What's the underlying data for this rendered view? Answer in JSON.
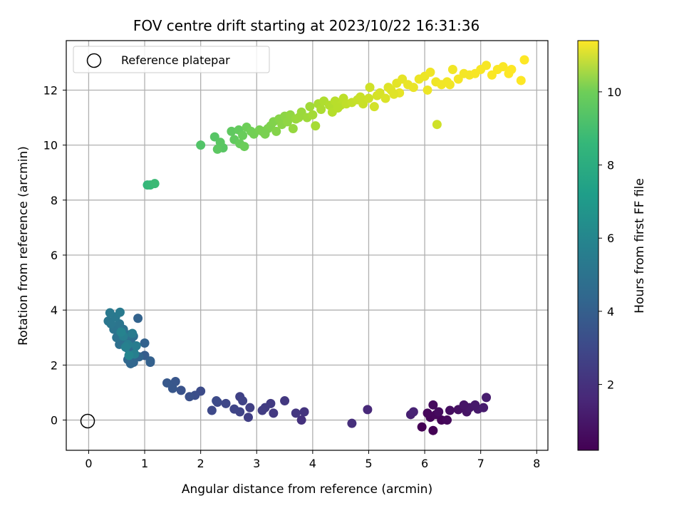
{
  "chart_data": {
    "type": "scatter",
    "title": "FOV centre drift starting at 2023/10/22 16:31:36",
    "xlabel": "Angular distance from reference (arcmin)",
    "ylabel": "Rotation from reference (arcmin)",
    "xlim": [
      -0.4,
      8.2
    ],
    "ylim": [
      -1.1,
      13.8
    ],
    "xticks": [
      0,
      1,
      2,
      3,
      4,
      5,
      6,
      7,
      8
    ],
    "yticks": [
      0,
      2,
      4,
      6,
      8,
      10,
      12
    ],
    "grid": true,
    "legend": {
      "position": "top-left",
      "entries": [
        "Reference platepar"
      ]
    },
    "reference_point": {
      "x": 0,
      "y": 0,
      "label": "Reference platepar"
    },
    "colorbar": {
      "label": "Hours from first FF file",
      "colormap": "viridis",
      "range": [
        0.2,
        11.4
      ],
      "ticks": [
        2,
        4,
        6,
        8,
        10
      ]
    },
    "points": [
      [
        5.95,
        -0.25,
        0.2
      ],
      [
        6.15,
        -0.38,
        0.25
      ],
      [
        6.3,
        0.0,
        0.3
      ],
      [
        6.1,
        0.1,
        0.35
      ],
      [
        6.2,
        0.2,
        0.4
      ],
      [
        6.4,
        0.0,
        0.45
      ],
      [
        6.15,
        0.55,
        0.5
      ],
      [
        6.25,
        0.3,
        0.55
      ],
      [
        6.45,
        0.35,
        0.6
      ],
      [
        6.6,
        0.38,
        0.7
      ],
      [
        6.75,
        0.3,
        0.8
      ],
      [
        6.8,
        0.45,
        0.9
      ],
      [
        6.95,
        0.4,
        1.0
      ],
      [
        7.05,
        0.45,
        1.05
      ],
      [
        7.1,
        0.82,
        1.1
      ],
      [
        6.9,
        0.55,
        0.95
      ],
      [
        6.7,
        0.55,
        0.85
      ],
      [
        6.05,
        0.25,
        0.4
      ],
      [
        5.75,
        0.2,
        1.2
      ],
      [
        5.8,
        0.3,
        1.3
      ],
      [
        4.98,
        0.38,
        1.5
      ],
      [
        4.7,
        -0.12,
        1.7
      ],
      [
        3.8,
        0.0,
        1.8
      ],
      [
        3.85,
        0.3,
        1.9
      ],
      [
        3.7,
        0.25,
        2.0
      ],
      [
        3.5,
        0.7,
        2.05
      ],
      [
        3.3,
        0.25,
        2.1
      ],
      [
        3.25,
        0.6,
        2.15
      ],
      [
        3.15,
        0.45,
        2.2
      ],
      [
        3.1,
        0.35,
        2.25
      ],
      [
        2.85,
        0.1,
        2.3
      ],
      [
        2.88,
        0.45,
        2.35
      ],
      [
        2.7,
        0.85,
        2.4
      ],
      [
        2.75,
        0.7,
        2.45
      ],
      [
        2.7,
        0.3,
        2.5
      ],
      [
        2.6,
        0.4,
        2.55
      ],
      [
        2.45,
        0.6,
        2.6
      ],
      [
        2.3,
        0.65,
        2.65
      ],
      [
        2.2,
        0.35,
        2.7
      ],
      [
        2.28,
        0.7,
        2.75
      ],
      [
        2.0,
        1.05,
        2.8
      ],
      [
        1.9,
        0.9,
        2.9
      ],
      [
        1.8,
        0.85,
        3.0
      ],
      [
        1.65,
        1.08,
        3.1
      ],
      [
        1.55,
        1.4,
        3.2
      ],
      [
        1.5,
        1.15,
        3.25
      ],
      [
        1.4,
        1.35,
        3.3
      ],
      [
        1.0,
        2.35,
        3.5
      ],
      [
        1.1,
        2.1,
        3.6
      ],
      [
        1.1,
        2.15,
        3.65
      ],
      [
        1.0,
        2.8,
        3.7
      ],
      [
        0.88,
        3.7,
        3.75
      ],
      [
        0.9,
        2.3,
        3.8
      ],
      [
        0.8,
        2.1,
        3.85
      ],
      [
        0.75,
        2.05,
        3.9
      ],
      [
        0.7,
        2.2,
        3.95
      ],
      [
        0.8,
        2.5,
        4.0
      ],
      [
        0.7,
        2.6,
        4.05
      ],
      [
        0.65,
        2.9,
        4.1
      ],
      [
        0.75,
        2.9,
        4.15
      ],
      [
        0.8,
        3.05,
        4.2
      ],
      [
        0.6,
        3.0,
        4.25
      ],
      [
        0.55,
        2.75,
        4.3
      ],
      [
        0.72,
        3.1,
        4.35
      ],
      [
        0.62,
        3.3,
        4.4
      ],
      [
        0.5,
        3.0,
        4.45
      ],
      [
        0.45,
        3.3,
        4.5
      ],
      [
        0.55,
        3.5,
        4.55
      ],
      [
        0.35,
        3.6,
        4.6
      ],
      [
        0.4,
        3.5,
        4.65
      ],
      [
        0.48,
        3.75,
        4.7
      ],
      [
        0.38,
        3.9,
        4.75
      ],
      [
        0.56,
        3.92,
        4.8
      ],
      [
        0.78,
        3.15,
        4.85
      ],
      [
        0.85,
        2.7,
        4.9
      ],
      [
        0.7,
        2.75,
        4.95
      ],
      [
        0.62,
        3.05,
        5.0
      ],
      [
        0.82,
        2.4,
        5.05
      ],
      [
        0.66,
        2.65,
        5.1
      ],
      [
        0.58,
        3.2,
        5.2
      ],
      [
        0.72,
        2.35,
        5.3
      ],
      [
        1.05,
        8.55,
        7.6
      ],
      [
        1.1,
        8.55,
        7.7
      ],
      [
        1.18,
        8.6,
        7.8
      ],
      [
        2.0,
        10.0,
        8.3
      ],
      [
        2.25,
        10.3,
        8.4
      ],
      [
        2.4,
        9.9,
        8.45
      ],
      [
        2.35,
        10.1,
        8.5
      ],
      [
        2.3,
        9.85,
        8.55
      ],
      [
        2.55,
        10.5,
        8.6
      ],
      [
        2.6,
        10.2,
        8.65
      ],
      [
        2.68,
        10.55,
        8.7
      ],
      [
        2.7,
        10.05,
        8.75
      ],
      [
        2.75,
        10.35,
        8.8
      ],
      [
        2.78,
        9.95,
        8.85
      ],
      [
        2.82,
        10.65,
        8.9
      ],
      [
        2.9,
        10.5,
        8.95
      ],
      [
        2.95,
        10.4,
        9.0
      ],
      [
        3.05,
        10.55,
        9.05
      ],
      [
        3.1,
        10.5,
        9.1
      ],
      [
        3.2,
        10.6,
        9.15
      ],
      [
        3.25,
        10.7,
        9.2
      ],
      [
        3.3,
        10.85,
        9.25
      ],
      [
        3.35,
        10.5,
        9.3
      ],
      [
        3.4,
        10.95,
        9.35
      ],
      [
        3.45,
        10.75,
        9.4
      ],
      [
        3.5,
        11.05,
        9.45
      ],
      [
        3.55,
        10.85,
        9.5
      ],
      [
        3.6,
        11.1,
        9.55
      ],
      [
        3.65,
        10.6,
        9.6
      ],
      [
        3.7,
        10.95,
        9.65
      ],
      [
        3.8,
        11.2,
        9.7
      ],
      [
        3.9,
        11.0,
        9.75
      ],
      [
        3.95,
        11.4,
        9.8
      ],
      [
        4.0,
        11.1,
        9.85
      ],
      [
        4.05,
        10.7,
        9.9
      ],
      [
        4.1,
        11.5,
        9.95
      ],
      [
        4.15,
        11.3,
        10.0
      ],
      [
        4.2,
        11.6,
        10.05
      ],
      [
        4.3,
        11.45,
        10.1
      ],
      [
        4.35,
        11.2,
        10.15
      ],
      [
        4.4,
        11.6,
        10.2
      ],
      [
        4.5,
        11.45,
        10.25
      ],
      [
        4.55,
        11.7,
        10.3
      ],
      [
        4.6,
        11.5,
        10.35
      ],
      [
        4.7,
        11.55,
        10.4
      ],
      [
        4.8,
        11.65,
        10.45
      ],
      [
        4.9,
        11.5,
        10.5
      ],
      [
        5.0,
        11.7,
        10.55
      ],
      [
        5.02,
        12.1,
        10.6
      ],
      [
        5.1,
        11.4,
        10.65
      ],
      [
        5.15,
        11.8,
        10.7
      ],
      [
        5.2,
        11.9,
        10.75
      ],
      [
        5.3,
        11.7,
        10.8
      ],
      [
        5.35,
        12.1,
        10.85
      ],
      [
        5.4,
        12.0,
        10.9
      ],
      [
        5.5,
        12.25,
        10.95
      ],
      [
        5.55,
        11.9,
        11.0
      ],
      [
        5.6,
        12.4,
        11.0
      ],
      [
        5.7,
        12.2,
        11.05
      ],
      [
        5.8,
        12.1,
        11.05
      ],
      [
        5.9,
        12.4,
        11.1
      ],
      [
        6.0,
        12.5,
        11.1
      ],
      [
        6.05,
        12.0,
        11.1
      ],
      [
        6.1,
        12.65,
        11.15
      ],
      [
        6.2,
        12.3,
        11.15
      ],
      [
        6.22,
        10.75,
        10.6
      ],
      [
        6.3,
        12.2,
        11.2
      ],
      [
        6.4,
        12.3,
        11.2
      ],
      [
        6.5,
        12.75,
        11.2
      ],
      [
        6.6,
        12.4,
        11.25
      ],
      [
        6.7,
        12.6,
        11.25
      ],
      [
        6.8,
        12.55,
        11.25
      ],
      [
        6.9,
        12.6,
        11.3
      ],
      [
        7.0,
        12.75,
        11.3
      ],
      [
        7.1,
        12.9,
        11.3
      ],
      [
        7.2,
        12.55,
        11.35
      ],
      [
        7.3,
        12.75,
        11.35
      ],
      [
        7.4,
        12.85,
        11.35
      ],
      [
        7.5,
        12.6,
        11.4
      ],
      [
        7.55,
        12.75,
        11.4
      ],
      [
        7.72,
        12.35,
        11.4
      ],
      [
        7.78,
        13.1,
        11.4
      ],
      [
        6.45,
        12.2,
        11.2
      ],
      [
        5.45,
        11.85,
        10.9
      ],
      [
        4.85,
        11.75,
        10.5
      ],
      [
        4.45,
        11.35,
        10.2
      ],
      [
        3.75,
        11.0,
        9.7
      ],
      [
        3.15,
        10.4,
        9.1
      ]
    ]
  }
}
